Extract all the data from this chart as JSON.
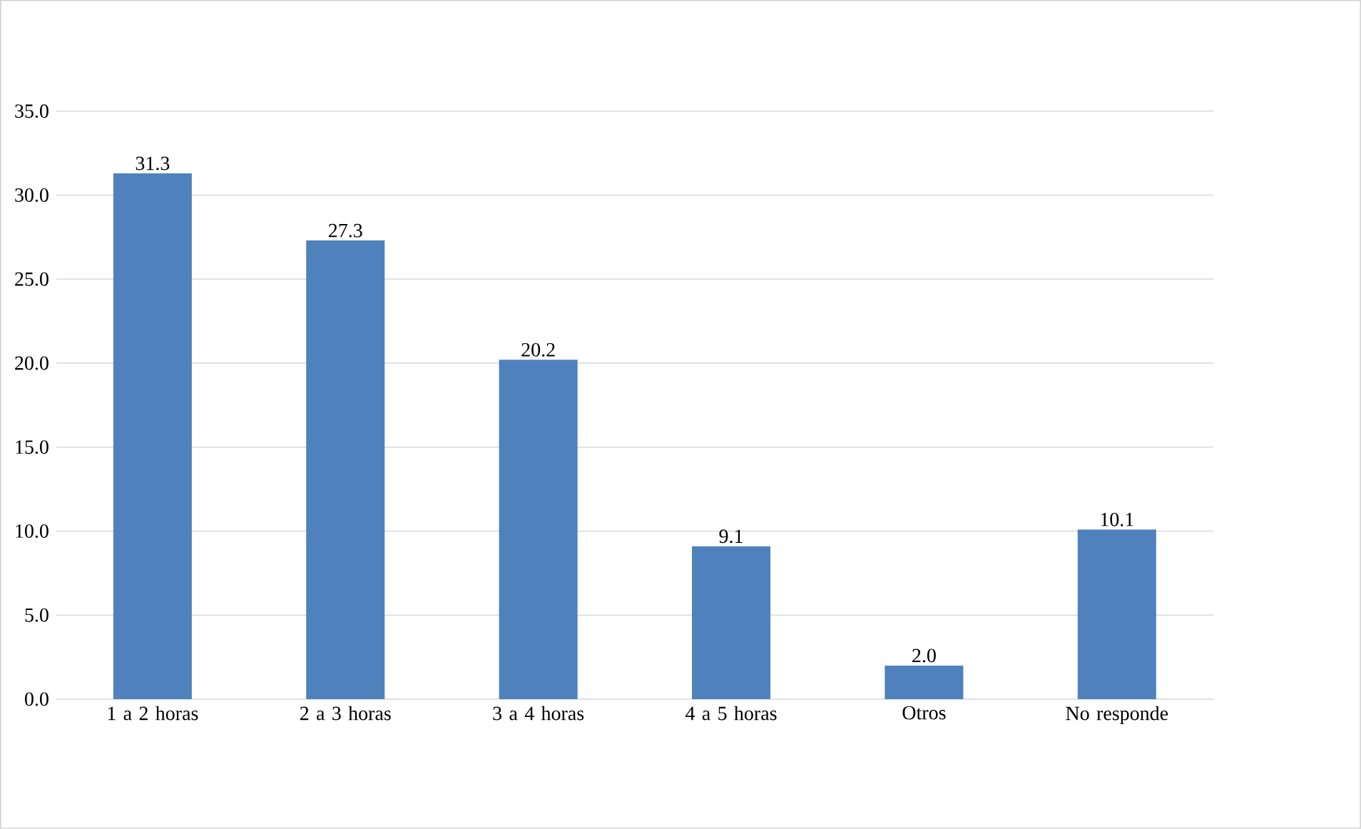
{
  "chart_data": {
    "type": "bar",
    "categories": [
      "1 a 2 horas",
      "2 a 3 horas",
      "3 a 4 horas",
      "4 a 5 horas",
      "Otros",
      "No responde"
    ],
    "values": [
      31.3,
      27.3,
      20.2,
      9.1,
      2.0,
      10.1
    ],
    "value_labels": [
      "31.3",
      "27.3",
      "20.2",
      "9.1",
      "2.0",
      "10.1"
    ],
    "color": "#4f81bd",
    "ylim": [
      0,
      35
    ],
    "yticks": [
      {
        "value": 0,
        "label": "0.0"
      },
      {
        "value": 5,
        "label": "5.0"
      },
      {
        "value": 10,
        "label": "10.0"
      },
      {
        "value": 15,
        "label": "15.0"
      },
      {
        "value": 20,
        "label": "20.0"
      },
      {
        "value": 25,
        "label": "25.0"
      },
      {
        "value": 30,
        "label": "30.0"
      },
      {
        "value": 35,
        "label": "35.0"
      }
    ],
    "grid": "y"
  }
}
